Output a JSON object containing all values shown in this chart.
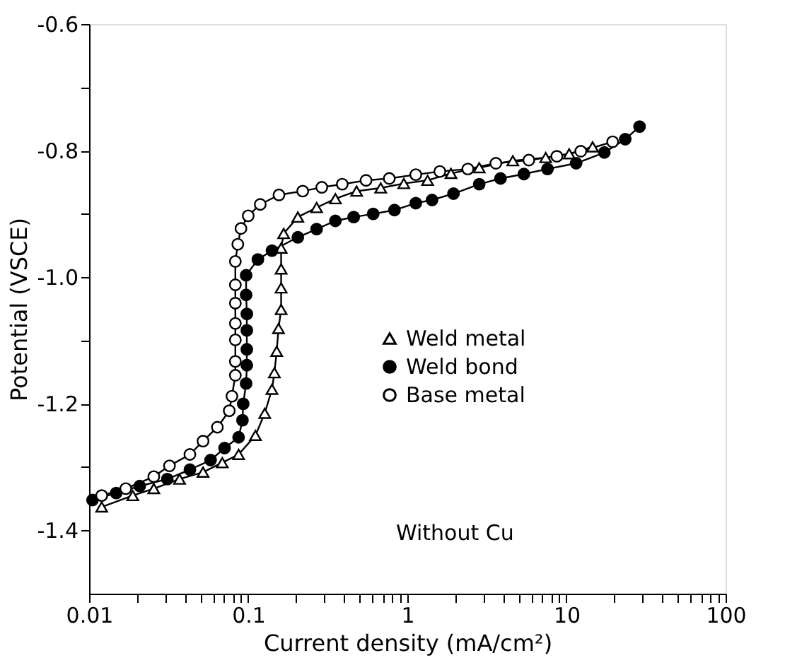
{
  "chart_data": {
    "type": "line",
    "xlabel": "Current density (mA/cm²)",
    "ylabel": "Potential   (VSCE)",
    "log": "x",
    "xlim": [
      0.01,
      100
    ],
    "ylim": [
      -1.5,
      -0.6
    ],
    "xticks": [
      0.01,
      {
        "value": 0.02,
        "label": null
      },
      {
        "value": 0.03,
        "label": null
      },
      {
        "value": 0.04,
        "label": null
      },
      {
        "value": 0.05,
        "label": null
      },
      {
        "value": 0.06,
        "label": null
      },
      {
        "value": 0.07,
        "label": null
      },
      {
        "value": 0.08,
        "label": null
      },
      {
        "value": 0.09,
        "label": null
      },
      0.1,
      {
        "value": 0.2,
        "label": null
      },
      {
        "value": 0.3,
        "label": null
      },
      {
        "value": 0.4,
        "label": null
      },
      {
        "value": 0.5,
        "label": null
      },
      {
        "value": 0.6,
        "label": null
      },
      {
        "value": 0.7,
        "label": null
      },
      {
        "value": 0.8,
        "label": null
      },
      {
        "value": 0.9,
        "label": null
      },
      1,
      {
        "value": 2,
        "label": null
      },
      {
        "value": 3,
        "label": null
      },
      {
        "value": 4,
        "label": null
      },
      {
        "value": 5,
        "label": null
      },
      {
        "value": 6,
        "label": null
      },
      {
        "value": 7,
        "label": null
      },
      {
        "value": 8,
        "label": null
      },
      {
        "value": 9,
        "label": null
      },
      10,
      {
        "value": 20,
        "label": null
      },
      {
        "value": 30,
        "label": null
      },
      {
        "value": 40,
        "label": null
      },
      {
        "value": 50,
        "label": null
      },
      {
        "value": 60,
        "label": null
      },
      {
        "value": 70,
        "label": null
      },
      {
        "value": 80,
        "label": null
      },
      {
        "value": 90,
        "label": null
      },
      100
    ],
    "yticks": [
      -0.6,
      {
        "value": -0.7,
        "label": null
      },
      -0.8,
      {
        "value": -0.9,
        "label": null
      },
      {
        "value": -1.0,
        "label": "-1.0"
      },
      {
        "value": -1.1,
        "label": null
      },
      -1.2,
      {
        "value": -1.3,
        "label": null
      },
      -1.4
    ],
    "grid": false,
    "legend": "right",
    "line_style": "solid",
    "annotations": [
      "Without Cu"
    ],
    "series": [
      {
        "name": "Weld metal",
        "color": "#000000",
        "marker": "triangle",
        "x": [
          0.012,
          0.0188,
          0.0255,
          0.037,
          0.052,
          0.0687,
          0.087,
          0.111,
          0.127,
          0.141,
          0.146,
          0.151,
          0.155,
          0.161,
          0.161,
          0.161,
          0.161,
          0.167,
          0.205,
          0.269,
          0.353,
          0.48,
          0.68,
          0.95,
          1.34,
          1.88,
          2.83,
          4.6,
          7.4,
          10.4,
          14.6
        ],
        "values": [
          -1.363,
          -1.345,
          -1.334,
          -1.319,
          -1.308,
          -1.293,
          -1.28,
          -1.25,
          -1.215,
          -1.177,
          -1.151,
          -1.117,
          -1.081,
          -1.051,
          -1.017,
          -0.987,
          -0.954,
          -0.931,
          -0.905,
          -0.89,
          -0.876,
          -0.864,
          -0.859,
          -0.852,
          -0.847,
          -0.836,
          -0.827,
          -0.816,
          -0.811,
          -0.805,
          -0.794
        ]
      },
      {
        "name": "Weld bond",
        "color": "#000000",
        "marker": "circle",
        "x": [
          0.0105,
          0.0148,
          0.0208,
          0.031,
          0.043,
          0.058,
          0.071,
          0.087,
          0.092,
          0.093,
          0.097,
          0.098,
          0.098,
          0.098,
          0.098,
          0.097,
          0.097,
          0.115,
          0.141,
          0.205,
          0.269,
          0.353,
          0.46,
          0.61,
          0.83,
          1.13,
          1.43,
          1.95,
          2.83,
          3.85,
          5.4,
          7.6,
          11.5,
          17.3,
          23.4,
          28.8
        ],
        "values": [
          -1.352,
          -1.341,
          -1.33,
          -1.319,
          -1.304,
          -1.289,
          -1.27,
          -1.253,
          -1.226,
          -1.2,
          -1.168,
          -1.139,
          -1.114,
          -1.084,
          -1.058,
          -1.028,
          -0.997,
          -0.972,
          -0.958,
          -0.937,
          -0.924,
          -0.911,
          -0.905,
          -0.9,
          -0.894,
          -0.883,
          -0.878,
          -0.868,
          -0.853,
          -0.844,
          -0.837,
          -0.829,
          -0.82,
          -0.803,
          -0.782,
          -0.762
        ]
      },
      {
        "name": "Base metal",
        "color": "#000000",
        "marker": "circle",
        "x": [
          0.012,
          0.017,
          0.0255,
          0.032,
          0.043,
          0.052,
          0.064,
          0.076,
          0.079,
          0.083,
          0.083,
          0.083,
          0.083,
          0.083,
          0.083,
          0.083,
          0.086,
          0.09,
          0.1,
          0.119,
          0.156,
          0.22,
          0.29,
          0.39,
          0.55,
          0.77,
          1.13,
          1.6,
          2.4,
          3.6,
          5.8,
          8.7,
          12.3,
          19.5
        ],
        "values": [
          -1.345,
          -1.334,
          -1.315,
          -1.298,
          -1.28,
          -1.259,
          -1.237,
          -1.211,
          -1.188,
          -1.155,
          -1.133,
          -1.099,
          -1.073,
          -1.041,
          -1.012,
          -0.975,
          -0.948,
          -0.923,
          -0.903,
          -0.885,
          -0.87,
          -0.864,
          -0.858,
          -0.853,
          -0.847,
          -0.844,
          -0.838,
          -0.833,
          -0.829,
          -0.82,
          -0.815,
          -0.809,
          -0.801,
          -0.786
        ]
      }
    ]
  }
}
